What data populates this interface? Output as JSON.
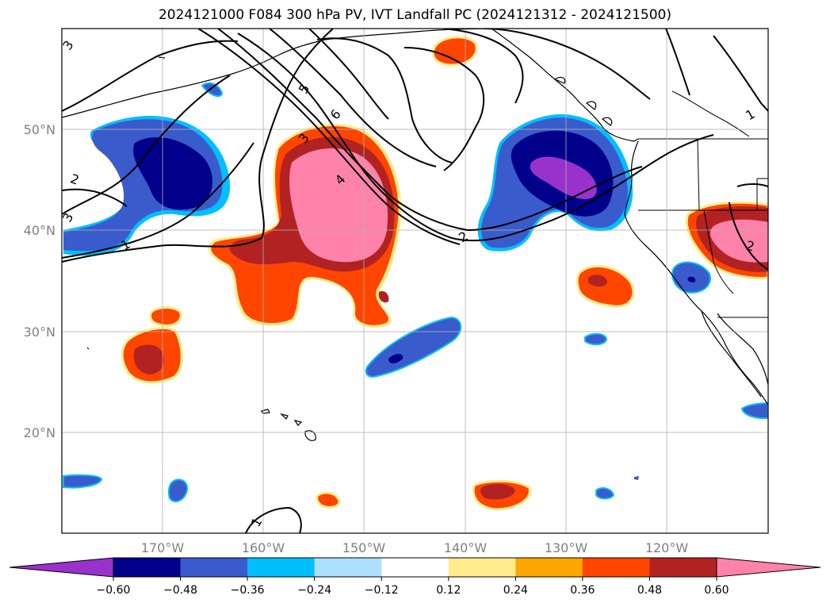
{
  "title": "2024121000 F084 300 hPa PV, IVT Landfall PC (2024121312 - 2024121500)",
  "map": {
    "projection": "PlateCarree",
    "lon_range": [
      -180,
      -110
    ],
    "lat_range": [
      10,
      60
    ],
    "gridlines": true,
    "lat_labels": [
      {
        "lat": 20,
        "text": "20°N"
      },
      {
        "lat": 30,
        "text": "30°N"
      },
      {
        "lat": 40,
        "text": "40°N"
      },
      {
        "lat": 50,
        "text": "50°N"
      }
    ],
    "lon_labels": [
      {
        "lon": -170,
        "text": "170°W"
      },
      {
        "lon": -160,
        "text": "160°W"
      },
      {
        "lon": -150,
        "text": "150°W"
      },
      {
        "lon": -140,
        "text": "140°W"
      },
      {
        "lon": -130,
        "text": "130°W"
      },
      {
        "lon": -120,
        "text": "120°W"
      }
    ]
  },
  "colorbar": {
    "extend": "both",
    "under_color": "#9932CC",
    "over_color": "#FF82AB",
    "colors": [
      "#00008B",
      "#3A5BCC",
      "#00BFFF",
      "#ADE0FA",
      "#FFFFFF",
      "#FFEC8B",
      "#FFA500",
      "#FF4500",
      "#B22222"
    ],
    "tick_labels": [
      "−0.60",
      "−0.48",
      "−0.36",
      "−0.24",
      "−0.12",
      "0.12",
      "0.24",
      "0.36",
      "0.48",
      "0.60"
    ]
  },
  "contour_labels": [
    "3",
    "5",
    "6",
    "3",
    "4",
    "2",
    "2",
    "1",
    "3",
    "1",
    "1",
    "2"
  ]
}
